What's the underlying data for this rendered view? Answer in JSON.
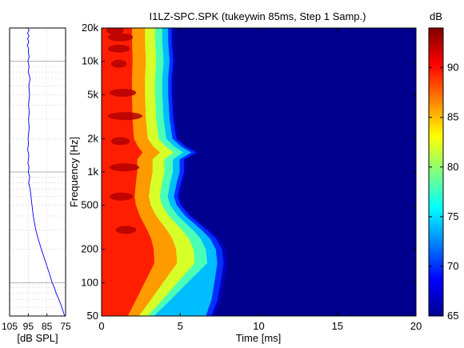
{
  "chart_data": [
    {
      "type": "line",
      "title": "",
      "xlabel": "[dB SPL]",
      "ylabel": "",
      "x_reversed": true,
      "xlim": [
        105,
        75
      ],
      "x_ticks": [
        "105",
        "95",
        "85",
        "75"
      ],
      "ylim": [
        50,
        20000
      ],
      "y_scale": "log",
      "grid": true,
      "series": [
        {
          "color": "#0000ff",
          "points": [
            {
              "f": 50,
              "db": 75.5
            },
            {
              "f": 60,
              "db": 77.0
            },
            {
              "f": 70,
              "db": 78.5
            },
            {
              "f": 80,
              "db": 80.0
            },
            {
              "f": 90,
              "db": 81.0
            },
            {
              "f": 100,
              "db": 82.2
            },
            {
              "f": 120,
              "db": 83.6
            },
            {
              "f": 150,
              "db": 85.5
            },
            {
              "f": 200,
              "db": 88.0
            },
            {
              "f": 250,
              "db": 89.7
            },
            {
              "f": 300,
              "db": 91.0
            },
            {
              "f": 400,
              "db": 92.3
            },
            {
              "f": 500,
              "db": 93.0
            },
            {
              "f": 600,
              "db": 93.5
            },
            {
              "f": 700,
              "db": 94.0
            },
            {
              "f": 800,
              "db": 94.8
            },
            {
              "f": 900,
              "db": 94.2
            },
            {
              "f": 1000,
              "db": 95.0
            },
            {
              "f": 1100,
              "db": 94.6
            },
            {
              "f": 1200,
              "db": 95.2
            },
            {
              "f": 1400,
              "db": 94.7
            },
            {
              "f": 1600,
              "db": 95.3
            },
            {
              "f": 1800,
              "db": 94.9
            },
            {
              "f": 2000,
              "db": 95.1
            },
            {
              "f": 2500,
              "db": 94.5
            },
            {
              "f": 3000,
              "db": 94.9
            },
            {
              "f": 3500,
              "db": 94.4
            },
            {
              "f": 4000,
              "db": 94.9
            },
            {
              "f": 5000,
              "db": 94.3
            },
            {
              "f": 6000,
              "db": 94.7
            },
            {
              "f": 7000,
              "db": 94.0
            },
            {
              "f": 8000,
              "db": 95.0
            },
            {
              "f": 9000,
              "db": 94.6
            },
            {
              "f": 10000,
              "db": 95.2
            },
            {
              "f": 11000,
              "db": 94.5
            },
            {
              "f": 12000,
              "db": 95.0
            },
            {
              "f": 13000,
              "db": 94.8
            },
            {
              "f": 14000,
              "db": 95.5
            },
            {
              "f": 15000,
              "db": 94.7
            },
            {
              "f": 16000,
              "db": 95.3
            },
            {
              "f": 17000,
              "db": 94.6
            },
            {
              "f": 18000,
              "db": 95.4
            },
            {
              "f": 19000,
              "db": 94.6
            },
            {
              "f": 20000,
              "db": 95.3
            }
          ]
        }
      ]
    },
    {
      "type": "heatmap",
      "title": "I1LZ-SPC.SPK (tukeywin 85ms, Step 1 Samp.)",
      "xlabel": "Time [ms]",
      "ylabel": "Frequency [Hz]",
      "xlim": [
        0,
        20
      ],
      "x_ticks": [
        "0",
        "5",
        "10",
        "15",
        "20"
      ],
      "y_scale": "log",
      "ylim": [
        50,
        20000
      ],
      "y_ticks": [
        {
          "value": 50,
          "label": "50"
        },
        {
          "value": 100,
          "label": "100"
        },
        {
          "value": 200,
          "label": "200"
        },
        {
          "value": 500,
          "label": "500"
        },
        {
          "value": 1000,
          "label": "1k"
        },
        {
          "value": 2000,
          "label": "2k"
        },
        {
          "value": 5000,
          "label": "5k"
        },
        {
          "value": 10000,
          "label": "10k"
        },
        {
          "value": 20000,
          "label": "20k"
        }
      ],
      "colorbar": {
        "label": "dB",
        "range": [
          65,
          94
        ],
        "ticks": [
          "65",
          "70",
          "75",
          "80",
          "85",
          "90"
        ],
        "colormap": "jet"
      },
      "decay_front_ms": [
        {
          "f": 50,
          "t": 7.2
        },
        {
          "f": 70,
          "t": 7.6
        },
        {
          "f": 100,
          "t": 7.8
        },
        {
          "f": 150,
          "t": 8.0
        },
        {
          "f": 200,
          "t": 7.9
        },
        {
          "f": 250,
          "t": 7.5
        },
        {
          "f": 300,
          "t": 6.9
        },
        {
          "f": 400,
          "t": 5.8
        },
        {
          "f": 500,
          "t": 5.2
        },
        {
          "f": 600,
          "t": 5.0
        },
        {
          "f": 800,
          "t": 5.2
        },
        {
          "f": 1000,
          "t": 5.4
        },
        {
          "f": 1300,
          "t": 5.4
        },
        {
          "f": 1500,
          "t": 6.2
        },
        {
          "f": 1700,
          "t": 5.5
        },
        {
          "f": 2000,
          "t": 4.9
        },
        {
          "f": 3000,
          "t": 4.7
        },
        {
          "f": 5000,
          "t": 4.6
        },
        {
          "f": 7000,
          "t": 4.6
        },
        {
          "f": 10000,
          "t": 4.7
        },
        {
          "f": 15000,
          "t": 4.6
        },
        {
          "f": 20000,
          "t": 4.6
        }
      ]
    }
  ]
}
